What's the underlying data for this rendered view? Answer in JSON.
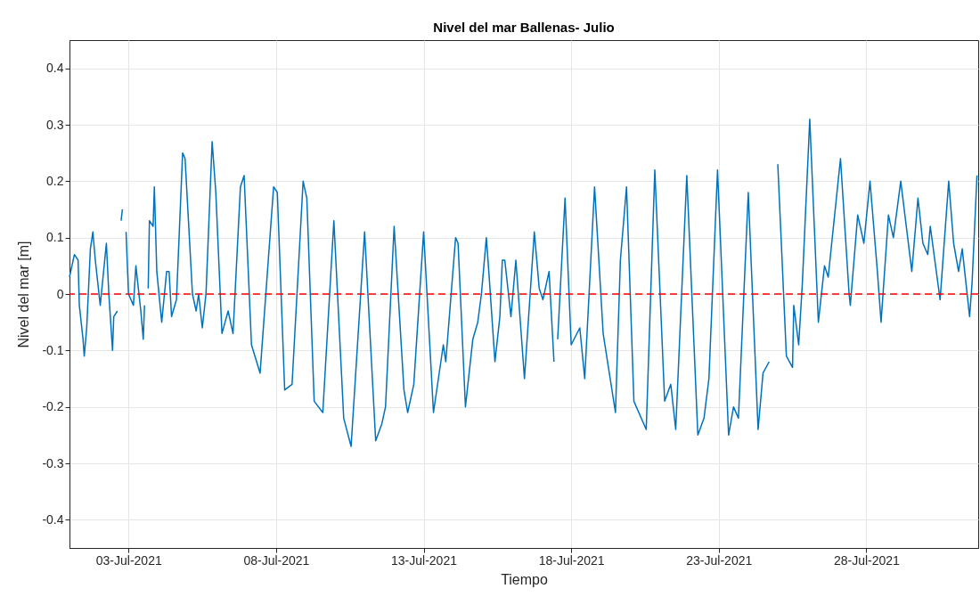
{
  "chart_data": {
    "type": "line",
    "title": "Nivel del mar Ballenas- Julio",
    "xlabel": "Tiempo",
    "ylabel": "Nivel del mar [m]",
    "x": [
      "2021-07-01T00:00",
      "2021-07-01T04:00",
      "2021-07-01T07:00",
      "2021-07-01T08:00",
      "2021-07-01T11:00",
      "2021-07-01T12:00",
      "2021-07-01T14:00",
      "2021-07-01T17:00",
      "2021-07-01T19:00",
      "2021-07-01T21:00",
      "2021-07-02T01:00",
      "2021-07-02T06:00",
      "2021-07-02T08:00",
      "2021-07-02T11:00",
      "2021-07-02T12:00",
      "2021-07-02T15:00",
      "2021-07-02T16:00",
      "2021-07-02T18:00",
      "2021-07-02T19:00",
      "2021-07-02T20:00",
      "2021-07-02T22:00",
      "2021-07-03T00:00",
      "2021-07-03T04:00",
      "2021-07-03T06:00",
      "2021-07-03T10:00",
      "2021-07-03T12:00",
      "2021-07-03T13:00",
      "2021-07-03T15:00",
      "2021-07-03T16:00",
      "2021-07-03T17:00",
      "2021-07-03T20:00",
      "2021-07-03T21:00",
      "2021-07-03T23:00",
      "2021-07-04T03:00",
      "2021-07-04T07:00",
      "2021-07-04T09:00",
      "2021-07-04T11:00",
      "2021-07-04T15:00",
      "2021-07-04T20:00",
      "2021-07-04T22:00",
      "2021-07-05T04:00",
      "2021-07-05T07:00",
      "2021-07-05T09:00",
      "2021-07-05T12:00",
      "2021-07-05T15:00",
      "2021-07-05T20:00",
      "2021-07-05T23:00",
      "2021-07-06T04:00",
      "2021-07-06T09:00",
      "2021-07-06T13:00",
      "2021-07-06T19:00",
      "2021-07-06T22:00",
      "2021-07-07T04:00",
      "2021-07-07T11:00",
      "2021-07-07T22:00",
      "2021-07-08T01:00",
      "2021-07-08T07:00",
      "2021-07-08T13:00",
      "2021-07-08T22:00",
      "2021-07-09T01:00",
      "2021-07-09T07:00",
      "2021-07-09T14:00",
      "2021-07-09T23:00",
      "2021-07-10T07:00",
      "2021-07-10T13:00",
      "2021-07-11T00:00",
      "2021-07-11T09:00",
      "2021-07-11T14:00",
      "2021-07-11T17:00",
      "2021-07-12T00:00",
      "2021-07-12T08:00",
      "2021-07-12T11:00",
      "2021-07-12T16:00",
      "2021-07-13T00:00",
      "2021-07-13T08:00",
      "2021-07-13T16:00",
      "2021-07-13T18:00",
      "2021-07-14T02:00",
      "2021-07-14T04:00",
      "2021-07-14T10:00",
      "2021-07-14T16:00",
      "2021-07-14T20:00",
      "2021-07-14T23:00",
      "2021-07-15T03:00",
      "2021-07-15T05:00",
      "2021-07-15T10:00",
      "2021-07-15T14:00",
      "2021-07-15T16:00",
      "2021-07-15T18:00",
      "2021-07-15T23:00",
      "2021-07-16T03:00",
      "2021-07-16T10:00",
      "2021-07-16T18:00",
      "2021-07-16T22:00",
      "2021-07-17T01:00",
      "2021-07-17T06:00",
      "2021-07-17T10:00",
      "2021-07-17T11:00",
      "2021-07-17T13:00",
      "2021-07-17T19:00",
      "2021-07-18T00:00",
      "2021-07-18T07:00",
      "2021-07-18T11:00",
      "2021-07-18T19:00",
      "2021-07-19T02:00",
      "2021-07-19T12:00",
      "2021-07-19T16:00",
      "2021-07-19T21:00",
      "2021-07-20T03:00",
      "2021-07-20T13:00",
      "2021-07-20T20:00",
      "2021-07-21T04:00",
      "2021-07-21T09:00",
      "2021-07-21T13:00",
      "2021-07-21T22:00",
      "2021-07-22T07:00",
      "2021-07-22T12:00",
      "2021-07-22T16:00",
      "2021-07-22T23:00",
      "2021-07-23T08:00",
      "2021-07-23T12:00",
      "2021-07-23T16:00",
      "2021-07-24T00:00",
      "2021-07-24T08:00",
      "2021-07-24T12:00",
      "2021-07-24T17:00",
      "2021-07-24T20:00",
      "2021-07-25T00:00",
      "2021-07-25T07:00",
      "2021-07-25T12:00",
      "2021-07-25T13:00",
      "2021-07-25T17:00",
      "2021-07-25T20:00",
      "2021-07-26T02:00",
      "2021-07-26T09:00",
      "2021-07-26T14:00",
      "2021-07-26T17:00",
      "2021-07-27T03:00",
      "2021-07-27T10:00",
      "2021-07-27T11:00",
      "2021-07-27T17:00",
      "2021-07-27T22:00",
      "2021-07-28T03:00",
      "2021-07-28T09:00",
      "2021-07-28T12:00",
      "2021-07-28T18:00",
      "2021-07-28T22:00",
      "2021-07-29T04:00",
      "2021-07-29T13:00",
      "2021-07-29T18:00",
      "2021-07-29T22:00",
      "2021-07-30T02:00",
      "2021-07-30T04:00",
      "2021-07-30T12:00",
      "2021-07-30T19:00",
      "2021-07-30T23:00",
      "2021-07-31T03:00",
      "2021-07-31T06:00",
      "2021-07-31T12:00",
      "2021-07-31T14:00",
      "2021-07-31T18:00"
    ],
    "series": [
      {
        "color": "#0072bd",
        "values": [
          0.03,
          0.07,
          0.06,
          -0.02,
          -0.08,
          -0.11,
          -0.06,
          0.08,
          0.11,
          0.06,
          -0.02,
          0.09,
          0.0,
          -0.1,
          -0.04,
          -0.03,
          null,
          0.13,
          0.15,
          null,
          0.11,
          0.0,
          -0.02,
          0.05,
          -0.03,
          -0.08,
          -0.02,
          null,
          0.01,
          0.13,
          0.12,
          0.19,
          0.04,
          -0.05,
          0.04,
          0.04,
          -0.04,
          -0.01,
          0.25,
          0.24,
          0.0,
          -0.03,
          0.0,
          -0.06,
          0.0,
          0.27,
          0.18,
          -0.07,
          -0.03,
          -0.07,
          0.19,
          0.21,
          -0.09,
          -0.14,
          0.19,
          0.18,
          -0.17,
          -0.16,
          0.2,
          0.17,
          -0.19,
          -0.21,
          0.13,
          -0.22,
          -0.27,
          0.11,
          -0.26,
          -0.23,
          -0.2,
          0.12,
          -0.17,
          -0.21,
          -0.16,
          0.11,
          -0.21,
          -0.09,
          -0.12,
          0.1,
          0.09,
          -0.2,
          -0.08,
          -0.05,
          0.0,
          0.1,
          0.04,
          -0.12,
          -0.04,
          0.06,
          0.06,
          -0.04,
          0.06,
          -0.15,
          0.11,
          0.01,
          -0.01,
          0.04,
          -0.12,
          null,
          -0.08,
          0.17,
          -0.09,
          -0.06,
          -0.15,
          0.19,
          -0.07,
          -0.21,
          0.06,
          0.19,
          -0.19,
          -0.24,
          0.22,
          -0.19,
          -0.16,
          -0.24,
          0.21,
          -0.25,
          -0.22,
          -0.15,
          0.22,
          -0.25,
          -0.2,
          -0.22,
          0.18,
          -0.24,
          -0.14,
          -0.12,
          null,
          0.23,
          -0.11,
          -0.13,
          -0.02,
          -0.09,
          0.02,
          0.31,
          -0.05,
          0.05,
          0.03,
          0.24,
          0.0,
          -0.02,
          0.14,
          0.09,
          0.2,
          0.04,
          -0.05,
          0.14,
          0.1,
          0.2,
          0.04,
          0.17,
          0.09,
          0.07,
          0.12,
          -0.01,
          0.2,
          0.09,
          0.04,
          0.08,
          -0.04,
          0.02,
          0.21
        ]
      }
    ],
    "xlim": [
      "2021-07-01T00:00",
      "2021-07-31T19:00"
    ],
    "xticks": [
      {
        "value": "2021-07-03",
        "label": "03-Jul-2021"
      },
      {
        "value": "2021-07-08",
        "label": "08-Jul-2021"
      },
      {
        "value": "2021-07-13",
        "label": "13-Jul-2021"
      },
      {
        "value": "2021-07-18",
        "label": "18-Jul-2021"
      },
      {
        "value": "2021-07-23",
        "label": "23-Jul-2021"
      },
      {
        "value": "2021-07-28",
        "label": "28-Jul-2021"
      }
    ],
    "ylim": [
      -0.45,
      0.45
    ],
    "yticks": [
      -0.4,
      -0.3,
      -0.2,
      -0.1,
      0,
      0.1,
      0.2,
      0.3,
      0.4
    ],
    "ref_lines": [
      {
        "axis": "y",
        "value": 0,
        "color": "#ff0000",
        "line_style": "dashed"
      }
    ],
    "grid": true,
    "line_style": "solid",
    "marker": "none"
  }
}
